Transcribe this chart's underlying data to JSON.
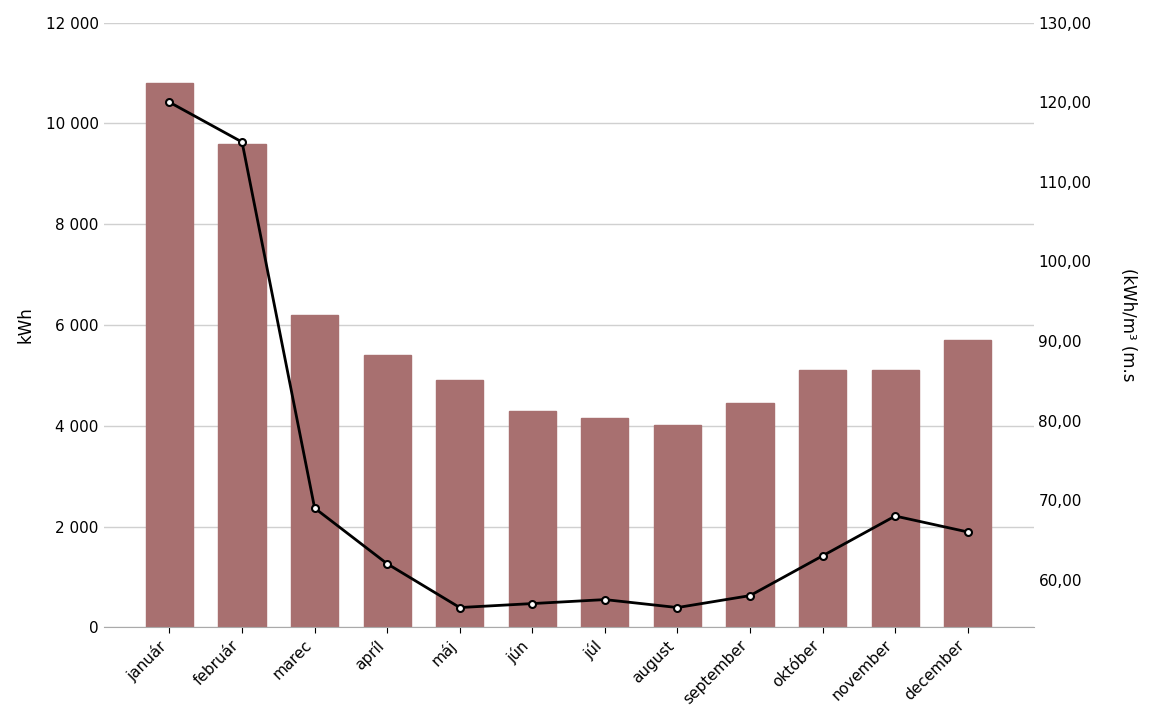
{
  "months": [
    "január",
    "február",
    "marec",
    "apríl",
    "máj",
    "jún",
    "júl",
    "august",
    "september",
    "október",
    "november",
    "december"
  ],
  "bar_values": [
    10800,
    9600,
    6200,
    5400,
    4900,
    4300,
    4150,
    4020,
    4450,
    5100,
    5100,
    5700
  ],
  "line_values": [
    120.0,
    115.0,
    69.0,
    62.0,
    56.5,
    57.0,
    57.5,
    56.5,
    58.0,
    63.0,
    68.0,
    66.0
  ],
  "bar_color": "#a87070",
  "line_color": "#000000",
  "marker_color": "#ffffff",
  "left_ylabel": "kWh",
  "right_ylabel": "(kWh/m³ (m.s",
  "ylim_left": [
    0,
    12000
  ],
  "ylim_right": [
    54.0,
    130.0
  ],
  "yticks_left": [
    0,
    2000,
    4000,
    6000,
    8000,
    10000,
    12000
  ],
  "yticks_right": [
    60.0,
    70.0,
    80.0,
    90.0,
    100.0,
    110.0,
    120.0,
    130.0
  ],
  "background_color": "#ffffff",
  "plot_bg_color": "#ffffff",
  "grid_color": "#d0d0d0",
  "tick_label_size": 11,
  "axis_label_size": 12
}
